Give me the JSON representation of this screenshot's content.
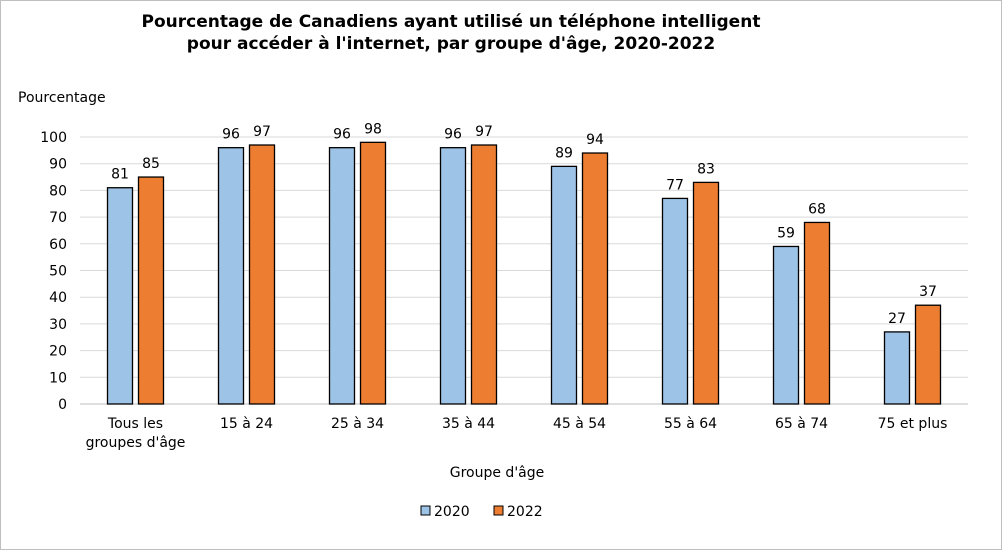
{
  "chart_data": {
    "type": "bar",
    "title_lines": [
      "Pourcentage de Canadiens ayant utilisé un téléphone intelligent",
      "pour accéder à l'internet, par groupe d'âge, 2020-2022"
    ],
    "ylabel": "Pourcentage",
    "xlabel": "Groupe d'âge",
    "ylim": [
      0,
      100
    ],
    "yticks": [
      0,
      10,
      20,
      30,
      40,
      50,
      60,
      70,
      80,
      90,
      100
    ],
    "categories": [
      [
        "Tous les",
        "groupes d'âge"
      ],
      [
        "15 à 24"
      ],
      [
        "25 à 34"
      ],
      [
        "35 à 44"
      ],
      [
        "45 à 54"
      ],
      [
        "55 à 64"
      ],
      [
        "65 à 74"
      ],
      [
        "75 et plus"
      ]
    ],
    "series": [
      {
        "name": "2020",
        "color": "#9dc3e6",
        "values": [
          81,
          96,
          96,
          96,
          89,
          77,
          59,
          27
        ]
      },
      {
        "name": "2022",
        "color": "#ed7d31",
        "values": [
          85,
          97,
          98,
          97,
          94,
          83,
          68,
          37
        ]
      }
    ],
    "grid": true,
    "legend_position": "bottom"
  }
}
